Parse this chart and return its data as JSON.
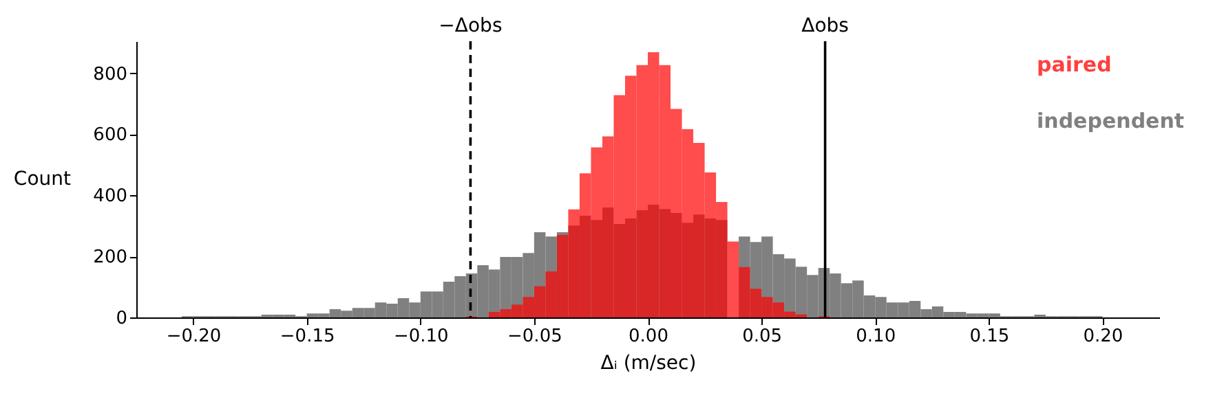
{
  "chart_data": {
    "type": "histogram",
    "xlabel": "Δᵢ (m/sec)",
    "ylabel": "Count",
    "bins": [
      -0.205,
      -0.2,
      -0.195,
      -0.19,
      -0.185,
      -0.18,
      -0.175,
      -0.17,
      -0.165,
      -0.16,
      -0.155,
      -0.15,
      -0.145,
      -0.14,
      -0.135,
      -0.13,
      -0.125,
      -0.12,
      -0.115,
      -0.11,
      -0.105,
      -0.1,
      -0.095,
      -0.09,
      -0.085,
      -0.08,
      -0.075,
      -0.07,
      -0.065,
      -0.06,
      -0.055,
      -0.05,
      -0.045,
      -0.04,
      -0.035,
      -0.03,
      -0.025,
      -0.02,
      -0.015,
      -0.01,
      -0.005,
      0,
      0.005,
      0.01,
      0.015,
      0.02,
      0.025,
      0.03,
      0.035,
      0.04,
      0.045,
      0.05,
      0.055,
      0.06,
      0.065,
      0.07,
      0.075,
      0.08,
      0.085,
      0.09,
      0.095,
      0.1,
      0.105,
      0.11,
      0.115,
      0.12,
      0.125,
      0.13,
      0.135,
      0.14,
      0.145,
      0.15,
      0.155,
      0.16,
      0.165,
      0.17,
      0.175,
      0.18,
      0.185,
      0.19,
      0.195,
      0.2
    ],
    "series": [
      {
        "name": "paired",
        "color": "#ff0000",
        "values": [
          0,
          0,
          0,
          0,
          0,
          0,
          0,
          0,
          0,
          0,
          0,
          0,
          0,
          0,
          0,
          0,
          0,
          0,
          0,
          0,
          0,
          0,
          0,
          0,
          0,
          3,
          0,
          18,
          27,
          42,
          67,
          102,
          151,
          270,
          354,
          472,
          557,
          593,
          728,
          792,
          827,
          869,
          827,
          683,
          617,
          572,
          475,
          378,
          249,
          165,
          94,
          67,
          49,
          19,
          10,
          0,
          4,
          0,
          0,
          0,
          0,
          0,
          0,
          0,
          0,
          0,
          0,
          0,
          0,
          0,
          0,
          0,
          0,
          0,
          0,
          0,
          0,
          0,
          0,
          0,
          0
        ]
      },
      {
        "name": "independent",
        "color": "#808080",
        "values": [
          4,
          4,
          4,
          4,
          4,
          4,
          4,
          9,
          9,
          9,
          4,
          13,
          13,
          27,
          22,
          31,
          31,
          49,
          45,
          63,
          49,
          85,
          85,
          117,
          135,
          144,
          171,
          157,
          198,
          198,
          211,
          279,
          265,
          279,
          301,
          333,
          319,
          360,
          306,
          324,
          351,
          369,
          355,
          342,
          310,
          337,
          324,
          319,
          null,
          265,
          247,
          265,
          207,
          193,
          166,
          139,
          162,
          144,
          112,
          121,
          72,
          67,
          49,
          49,
          54,
          27,
          36,
          18,
          18,
          13,
          13,
          13,
          4,
          4,
          4,
          9,
          4,
          4,
          4,
          4,
          4
        ]
      }
    ],
    "xlim": [
      -0.225,
      0.225
    ],
    "ylim": [
      0,
      905
    ],
    "xticks": [
      {
        "value": -0.2,
        "label": "−0.20"
      },
      {
        "value": -0.15,
        "label": "−0.15"
      },
      {
        "value": -0.1,
        "label": "−0.10"
      },
      {
        "value": -0.05,
        "label": "−0.05"
      },
      {
        "value": 0,
        "label": "0.00"
      },
      {
        "value": 0.05,
        "label": "0.05"
      },
      {
        "value": 0.1,
        "label": "0.10"
      },
      {
        "value": 0.15,
        "label": "0.15"
      },
      {
        "value": 0.2,
        "label": "0.20"
      }
    ],
    "yticks": [
      0,
      200,
      400,
      600,
      800
    ],
    "ref_lines": [
      {
        "axis": "x",
        "value": -0.078,
        "label": "−Δobs",
        "line_style": "dashed",
        "color": "#000000"
      },
      {
        "axis": "x",
        "value": 0.078,
        "label": "Δobs",
        "line_style": "solid",
        "color": "#000000"
      }
    ],
    "legend": "top right",
    "grid": false
  }
}
